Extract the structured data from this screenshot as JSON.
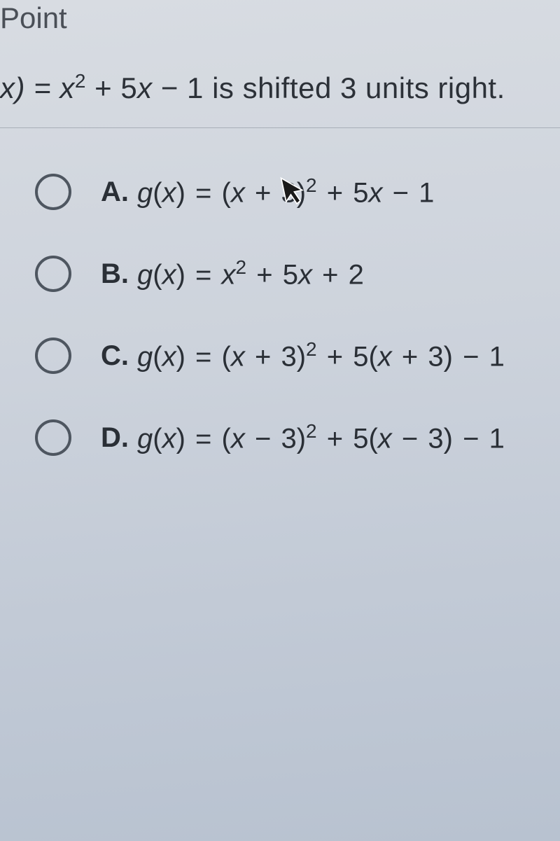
{
  "header": {
    "label": "Point"
  },
  "question": {
    "prefix": "x) = ",
    "equation_html": "x<sup class='sup'>2</sup> + 5x − 1",
    "suffix": " is shifted 3 units right."
  },
  "options": [
    {
      "letter": "A.",
      "formula_html": "<span class='fn'>g</span><span class='paren'>(</span><span class='fn'>x</span><span class='paren'>)</span> <span class='op'>=</span> <span class='paren'>(</span><span class='fn'>x</span> <span class='op'>+</span> <span class='num'>3</span><span class='paren'>)</span><sup class='sup'>2</sup> <span class='op'>+</span> <span class='num'>5</span><span class='fn'>x</span> <span class='op'>−</span> <span class='num'>1</span>"
    },
    {
      "letter": "B.",
      "formula_html": "<span class='fn'>g</span><span class='paren'>(</span><span class='fn'>x</span><span class='paren'>)</span> <span class='op'>=</span> <span class='fn'>x</span><sup class='sup'>2</sup> <span class='op'>+</span> <span class='num'>5</span><span class='fn'>x</span> <span class='op'>+</span> <span class='num'>2</span>"
    },
    {
      "letter": "C.",
      "formula_html": "<span class='fn'>g</span><span class='paren'>(</span><span class='fn'>x</span><span class='paren'>)</span> <span class='op'>=</span> <span class='paren'>(</span><span class='fn'>x</span> <span class='op'>+</span> <span class='num'>3</span><span class='paren'>)</span><sup class='sup'>2</sup> <span class='op'>+</span> <span class='num'>5</span><span class='paren'>(</span><span class='fn'>x</span> <span class='op'>+</span> <span class='num'>3</span><span class='paren'>)</span> <span class='op'>−</span> <span class='num'>1</span>"
    },
    {
      "letter": "D.",
      "formula_html": "<span class='fn'>g</span><span class='paren'>(</span><span class='fn'>x</span><span class='paren'>)</span> <span class='op'>=</span> <span class='paren'>(</span><span class='fn'>x</span> <span class='op'>−</span> <span class='num'>3</span><span class='paren'>)</span><sup class='sup'>2</sup> <span class='op'>+</span> <span class='num'>5</span><span class='paren'>(</span><span class='fn'>x</span> <span class='op'>−</span> <span class='num'>3</span><span class='paren'>)</span> <span class='op'>−</span> <span class='num'>1</span>"
    }
  ],
  "styling": {
    "background_gradient_start": "#d8dce2",
    "background_gradient_end": "#b8c2d0",
    "text_color": "#2a2f36",
    "header_color": "#4a4f57",
    "radio_border_color": "#4e5660",
    "divider_color": "#a8afb8",
    "header_fontsize": 42,
    "question_fontsize": 42,
    "option_fontsize": 40,
    "superscript_fontsize": 28,
    "radio_diameter": 52,
    "radio_border_width": 4
  }
}
